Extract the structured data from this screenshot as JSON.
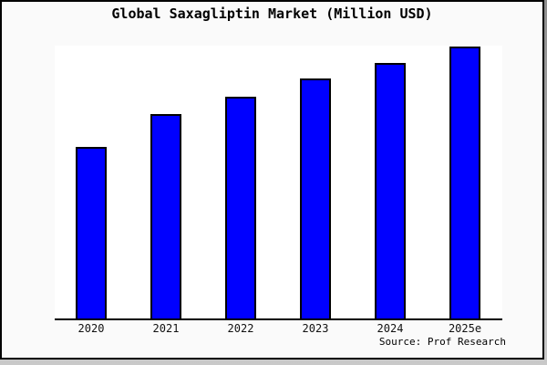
{
  "title": "Global Saxagliptin Market (Million USD)",
  "source": "Source: Prof Research",
  "colors": {
    "bar_fill": "#0000ff",
    "bar_border": "#000000",
    "figure_background": "#fafafa",
    "plot_background": "#ffffff",
    "axis": "#000000",
    "text": "#000000",
    "outer_border": "#000000"
  },
  "chart_data": {
    "type": "bar",
    "title": "Global Saxagliptin Market (Million USD)",
    "categories": [
      "2020",
      "2021",
      "2022",
      "2023",
      "2024",
      "2025e"
    ],
    "values": [
      63.0,
      75.3,
      81.7,
      88.1,
      94.1,
      100.0
    ],
    "value_scale": "relative-percent-of-2025e-bar; y-axis has no ticks or labels in source image",
    "xlabel": "",
    "ylabel": "",
    "ylim": [
      0,
      100
    ],
    "grid": false,
    "legend": false,
    "bar_color": "#0000ff",
    "source_note": "Source: Prof Research"
  }
}
